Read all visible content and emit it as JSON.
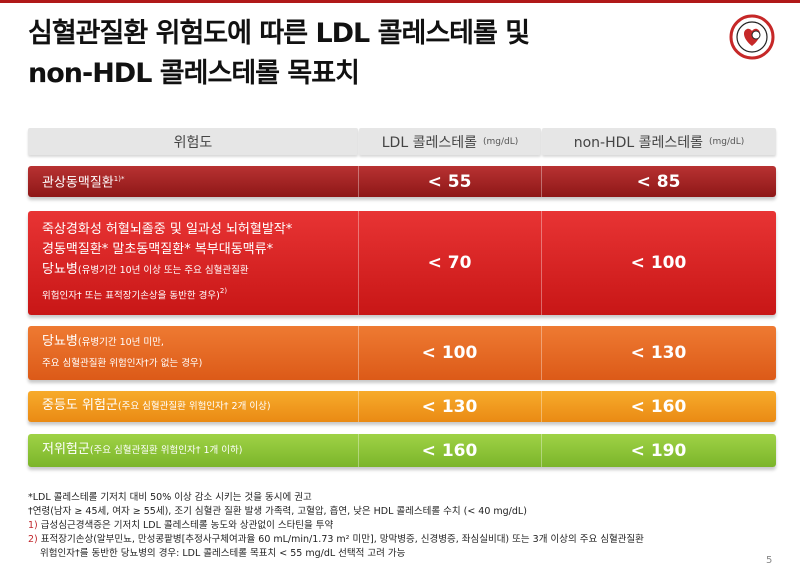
{
  "title": {
    "line1": "심혈관질환 위험도에 따른 LDL 콜레스테롤 및",
    "line2": "non-HDL 콜레스테롤 목표치"
  },
  "table": {
    "header": {
      "risk": "위험도",
      "ldl": "LDL 콜레스테롤",
      "ldl_unit": "(mg/dL)",
      "nonhdl": "non-HDL 콜레스테롤",
      "nonhdl_unit": "(mg/dL)"
    },
    "rows": [
      {
        "line1": "관상동맥질환",
        "line1_sup": "1)*",
        "ldl": "< 55",
        "nonhdl": "< 85"
      },
      {
        "line1": "죽상경화성 허혈뇌졸중 및 일과성 뇌허혈발작*",
        "line2": "경동맥질환*  말초동맥질환*  복부대동맥류*",
        "line3_main": "당뇨병",
        "line3_small": "(유병기간 10년 이상 또는 주요 심혈관질환",
        "line4_small": "위험인자† 또는 표적장기손상을 동반한 경우)",
        "line4_sup": "2)",
        "ldl": "< 70",
        "nonhdl": "< 100"
      },
      {
        "line1_main": "당뇨병",
        "line1_small": "(유병기간 10년 미만,",
        "line2_small": "주요 심혈관질환 위험인자†가 없는 경우)",
        "ldl": "< 100",
        "nonhdl": "< 130"
      },
      {
        "line1_main": "중등도 위험군",
        "line1_small": "(주요 심혈관질환 위험인자† 2개 이상)",
        "ldl": "< 130",
        "nonhdl": "< 160"
      },
      {
        "line1_main": "저위험군",
        "line1_small": "(주요 심혈관질환 위험인자† 1개 이하)",
        "ldl": "< 160",
        "nonhdl": "< 190"
      }
    ]
  },
  "notes": {
    "n1": "*LDL 콜레스테롤 기저치 대비 50% 이상 감소 시키는 것을 동시에 권고",
    "n2": "†연령(남자 ≥ 45세, 여자 ≥ 55세), 조기 심혈관 질환 발생 가족력, 고혈압, 흡연, 낮은 HDL 콜레스테롤 수치 (< 40 mg/dL)",
    "n3_mark": "1)",
    "n3": " 급성심근경색증은 기저치 LDL 콜레스테롤 농도와 상관없이 스타틴을 투약",
    "n4_mark": "2)",
    "n4": " 표적장기손상(알부민뇨, 만성콩팥병[추정사구체여과율 60 mL/min/1.73 m² 미만], 망막병증, 신경병증, 좌심실비대) 또는 3개 이상의 주요 심혈관질환",
    "n5": "위험인자†를 동반한 당뇨병의 경우: LDL 콜레스테롤 목표치 < 55 mg/dL 선택적 고려 가능"
  },
  "page_number": "5",
  "colors": {
    "accent": "#b01818",
    "row1": "#a52424",
    "row2": "#d82424",
    "row3": "#e66a24",
    "row4": "#f29b20",
    "row5": "#8dc438"
  }
}
